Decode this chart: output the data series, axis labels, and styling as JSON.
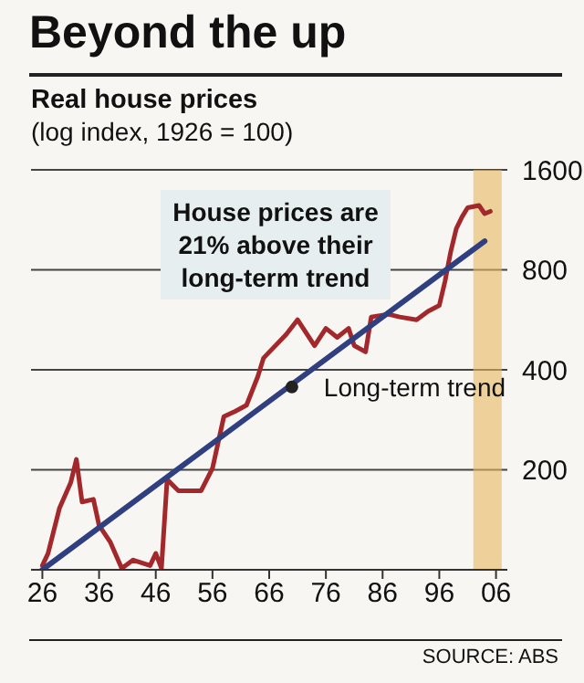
{
  "chart_data": {
    "type": "line",
    "title": "Beyond the up",
    "subtitle": "Real house prices",
    "ylabel": "(log index, 1926 = 100)",
    "annotations": [
      "House prices are 21% above their long-term trend",
      {
        "text": "Long-term trend",
        "x": 1970,
        "y": 355
      },
      "SOURCE: ABS"
    ],
    "series": [
      {
        "color": "#a3282b",
        "x": [
          1926,
          1927,
          1929,
          1931,
          1932,
          1933,
          1935,
          1936,
          1938,
          1940,
          1942,
          1945,
          1946,
          1947,
          1948,
          1950,
          1954,
          1956,
          1958,
          1960,
          1962,
          1964,
          1965,
          1969,
          1971,
          1972,
          1974,
          1976,
          1978,
          1980,
          1981,
          1983,
          1984,
          1987,
          1989,
          1992,
          1994,
          1996,
          1997,
          1998,
          1999,
          2000,
          2001,
          2003,
          2004,
          2005
        ],
        "values": [
          103,
          112,
          153,
          183,
          215,
          160,
          163,
          136,
          121,
          101,
          107,
          103,
          112,
          101,
          187,
          173,
          173,
          202,
          289,
          300,
          313,
          382,
          434,
          511,
          566,
          533,
          473,
          533,
          501,
          533,
          473,
          453,
          577,
          588,
          577,
          566,
          600,
          625,
          738,
          905,
          1065,
          1154,
          1230,
          1250,
          1181,
          1200
        ]
      },
      {
        "type": "line",
        "color": "#2f3f7f",
        "x": [
          1926,
          2004
        ],
        "values": [
          100,
          976
        ]
      }
    ],
    "xlim": [
      1924,
      2008
    ],
    "xticks": [
      {
        "value": 1926,
        "label": "26"
      },
      {
        "value": 1936,
        "label": "36"
      },
      {
        "value": 1946,
        "label": "46"
      },
      {
        "value": 1956,
        "label": "56"
      },
      {
        "value": 1966,
        "label": "66"
      },
      {
        "value": 1976,
        "label": "76"
      },
      {
        "value": 1986,
        "label": "86"
      },
      {
        "value": 1996,
        "label": "96"
      },
      {
        "value": 2006,
        "label": "06"
      }
    ],
    "ylim": [
      100,
      1600
    ],
    "yticks": [
      200,
      400,
      800,
      1600
    ],
    "log": true,
    "grid": "y",
    "legend": false,
    "marker": "none",
    "line_style": "solid",
    "bands": [
      {
        "axis": "x",
        "from": 2002,
        "to": 2007,
        "color": "#e8b860"
      }
    ]
  }
}
